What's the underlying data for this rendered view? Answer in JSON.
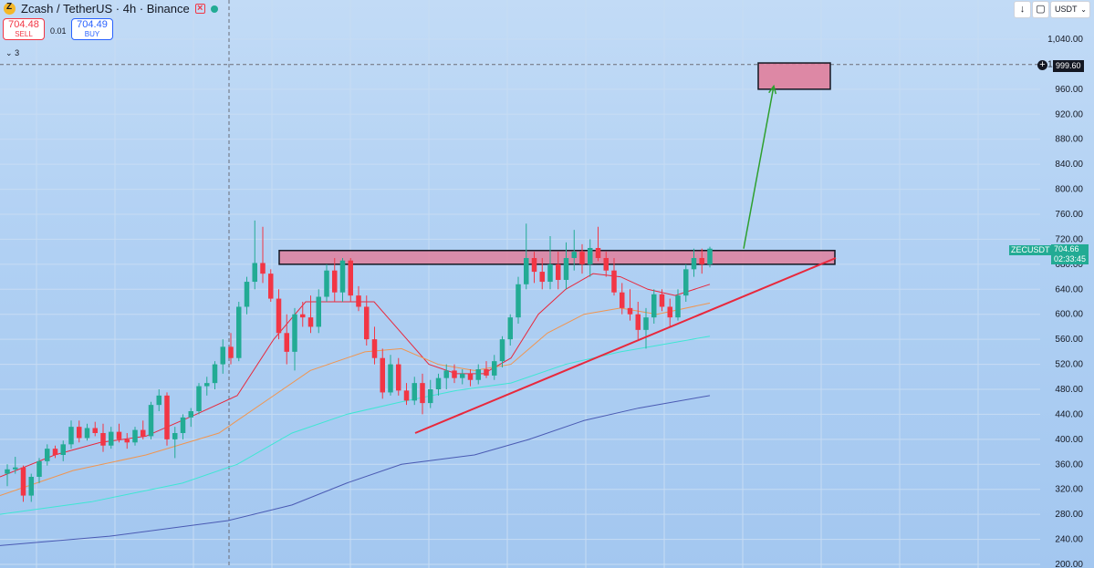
{
  "header": {
    "title": "Zcash / TetherUS · 4h · Binance",
    "sell_price": "704.48",
    "sell_label": "SELL",
    "buy_price": "704.49",
    "buy_label": "BUY",
    "spread": "0.01",
    "indicator_toggle": "3"
  },
  "toolbar": {
    "currency": "USDT"
  },
  "price_scale": [
    "1,040.00",
    "1,000.00",
    "960.00",
    "920.00",
    "880.00",
    "840.00",
    "800.00",
    "760.00",
    "720.00",
    "680.00",
    "640.00",
    "600.00",
    "560.00",
    "520.00",
    "480.00",
    "440.00",
    "400.00",
    "360.00",
    "320.00",
    "280.00",
    "240.00",
    "200.00"
  ],
  "labels": {
    "symbol": "ZECUSDT",
    "last_price": "704.66",
    "countdown": "02:33:45",
    "hline_price": "999.60"
  },
  "colors": {
    "up": "#22ab94",
    "down": "#f23645",
    "ma_fast": "#e8283c",
    "ma_mid": "#f09550",
    "ma_slow": "#3fe6d4",
    "ma_long": "#4a5ab3",
    "zone_fill": "#e0809c",
    "arrow": "#2ea02e"
  },
  "chart_data": {
    "type": "candlestick",
    "symbol": "ZECUSDT",
    "interval": "4h",
    "exchange": "Binance",
    "ylim": [
      200,
      1040
    ],
    "ohlc": [
      [
        345,
        360,
        325,
        352
      ],
      [
        352,
        372,
        345,
        355
      ],
      [
        355,
        358,
        300,
        310
      ],
      [
        310,
        345,
        300,
        340
      ],
      [
        340,
        370,
        330,
        365
      ],
      [
        365,
        392,
        358,
        385
      ],
      [
        385,
        390,
        370,
        375
      ],
      [
        375,
        398,
        365,
        392
      ],
      [
        392,
        430,
        385,
        420
      ],
      [
        420,
        430,
        395,
        402
      ],
      [
        402,
        425,
        398,
        418
      ],
      [
        418,
        428,
        405,
        410
      ],
      [
        410,
        425,
        380,
        390
      ],
      [
        390,
        420,
        385,
        412
      ],
      [
        412,
        425,
        395,
        400
      ],
      [
        400,
        410,
        385,
        395
      ],
      [
        395,
        420,
        390,
        415
      ],
      [
        415,
        430,
        400,
        405
      ],
      [
        405,
        460,
        400,
        455
      ],
      [
        455,
        480,
        445,
        470
      ],
      [
        470,
        475,
        390,
        400
      ],
      [
        400,
        420,
        370,
        410
      ],
      [
        410,
        440,
        400,
        435
      ],
      [
        435,
        450,
        420,
        445
      ],
      [
        445,
        490,
        440,
        485
      ],
      [
        485,
        500,
        470,
        490
      ],
      [
        490,
        525,
        480,
        520
      ],
      [
        520,
        560,
        505,
        548
      ],
      [
        548,
        570,
        520,
        530
      ],
      [
        530,
        620,
        525,
        612
      ],
      [
        612,
        660,
        600,
        652
      ],
      [
        652,
        750,
        640,
        682
      ],
      [
        682,
        740,
        650,
        665
      ],
      [
        665,
        672,
        620,
        625
      ],
      [
        625,
        640,
        560,
        570
      ],
      [
        570,
        600,
        520,
        540
      ],
      [
        540,
        610,
        510,
        600
      ],
      [
        600,
        620,
        580,
        595
      ],
      [
        595,
        630,
        570,
        580
      ],
      [
        580,
        640,
        570,
        628
      ],
      [
        628,
        680,
        620,
        670
      ],
      [
        670,
        690,
        620,
        635
      ],
      [
        635,
        690,
        620,
        686
      ],
      [
        686,
        690,
        620,
        630
      ],
      [
        630,
        645,
        605,
        612
      ],
      [
        612,
        630,
        550,
        560
      ],
      [
        560,
        580,
        520,
        530
      ],
      [
        530,
        545,
        465,
        475
      ],
      [
        475,
        535,
        470,
        520
      ],
      [
        520,
        530,
        470,
        478
      ],
      [
        478,
        490,
        455,
        462
      ],
      [
        462,
        500,
        455,
        490
      ],
      [
        490,
        505,
        440,
        458
      ],
      [
        458,
        495,
        450,
        480
      ],
      [
        480,
        505,
        470,
        498
      ],
      [
        498,
        520,
        480,
        510
      ],
      [
        510,
        520,
        490,
        498
      ],
      [
        498,
        512,
        488,
        505
      ],
      [
        505,
        512,
        485,
        495
      ],
      [
        495,
        520,
        488,
        512
      ],
      [
        512,
        525,
        498,
        502
      ],
      [
        502,
        535,
        495,
        525
      ],
      [
        525,
        565,
        515,
        560
      ],
      [
        560,
        600,
        550,
        595
      ],
      [
        595,
        660,
        585,
        648
      ],
      [
        648,
        745,
        640,
        690
      ],
      [
        690,
        700,
        650,
        668
      ],
      [
        668,
        690,
        640,
        652
      ],
      [
        652,
        725,
        640,
        680
      ],
      [
        680,
        700,
        640,
        655
      ],
      [
        655,
        715,
        640,
        690
      ],
      [
        690,
        735,
        670,
        700
      ],
      [
        700,
        712,
        665,
        680
      ],
      [
        680,
        720,
        660,
        706
      ],
      [
        706,
        740,
        685,
        690
      ],
      [
        690,
        700,
        660,
        670
      ],
      [
        670,
        690,
        630,
        635
      ],
      [
        635,
        650,
        600,
        610
      ],
      [
        610,
        640,
        590,
        600
      ],
      [
        600,
        620,
        560,
        575
      ],
      [
        575,
        610,
        545,
        595
      ],
      [
        595,
        640,
        585,
        632
      ],
      [
        632,
        640,
        605,
        612
      ],
      [
        612,
        625,
        580,
        595
      ],
      [
        595,
        640,
        590,
        630
      ],
      [
        630,
        680,
        620,
        672
      ],
      [
        672,
        705,
        660,
        690
      ],
      [
        690,
        705,
        665,
        680
      ],
      [
        680,
        708,
        675,
        705
      ]
    ],
    "moving_averages": [
      {
        "color": "#e8283c",
        "values": [
          [
            0,
            340
          ],
          [
            60,
            375
          ],
          [
            110,
            395
          ],
          [
            160,
            405
          ],
          [
            215,
            440
          ],
          [
            260,
            470
          ],
          [
            300,
            560
          ],
          [
            335,
            620
          ],
          [
            380,
            620
          ],
          [
            410,
            620
          ],
          [
            440,
            570
          ],
          [
            470,
            520
          ],
          [
            500,
            505
          ],
          [
            530,
            505
          ],
          [
            560,
            530
          ],
          [
            590,
            600
          ],
          [
            620,
            640
          ],
          [
            650,
            665
          ],
          [
            680,
            660
          ],
          [
            710,
            640
          ],
          [
            740,
            630
          ],
          [
            778,
            648
          ]
        ]
      },
      {
        "color": "#f09550",
        "values": [
          [
            0,
            310
          ],
          [
            80,
            350
          ],
          [
            160,
            375
          ],
          [
            240,
            410
          ],
          [
            300,
            470
          ],
          [
            340,
            510
          ],
          [
            400,
            540
          ],
          [
            440,
            545
          ],
          [
            480,
            520
          ],
          [
            520,
            510
          ],
          [
            560,
            520
          ],
          [
            600,
            570
          ],
          [
            640,
            600
          ],
          [
            680,
            610
          ],
          [
            720,
            600
          ],
          [
            778,
            618
          ]
        ]
      },
      {
        "color": "#3fe6d4",
        "values": [
          [
            0,
            280
          ],
          [
            100,
            300
          ],
          [
            200,
            330
          ],
          [
            260,
            360
          ],
          [
            320,
            410
          ],
          [
            380,
            440
          ],
          [
            440,
            460
          ],
          [
            500,
            478
          ],
          [
            560,
            490
          ],
          [
            620,
            520
          ],
          [
            680,
            540
          ],
          [
            720,
            550
          ],
          [
            778,
            565
          ]
        ]
      },
      {
        "color": "#4a5ab3",
        "values": [
          [
            0,
            230
          ],
          [
            120,
            245
          ],
          [
            250,
            270
          ],
          [
            320,
            295
          ],
          [
            380,
            330
          ],
          [
            440,
            360
          ],
          [
            520,
            375
          ],
          [
            580,
            400
          ],
          [
            640,
            430
          ],
          [
            700,
            450
          ],
          [
            778,
            470
          ]
        ]
      }
    ],
    "resistance_zone": {
      "low": 680,
      "high": 702
    },
    "target_zone": {
      "low": 960,
      "high": 1002
    },
    "support_trendline": [
      [
        455,
        410
      ],
      [
        916,
        690
      ]
    ],
    "projection_arrow": [
      [
        815,
        705
      ],
      [
        848,
        965
      ]
    ],
    "horizontal_line": 999.6,
    "last_price": 704.66
  }
}
